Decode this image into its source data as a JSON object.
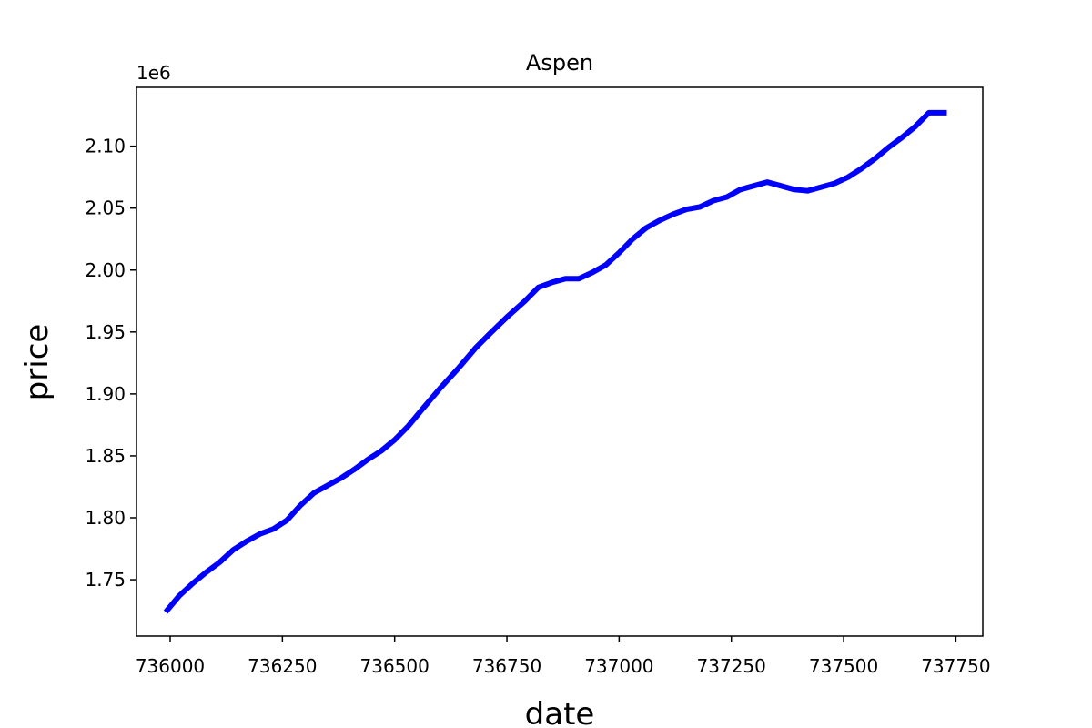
{
  "chart_data": {
    "type": "line",
    "title": "Aspen",
    "xlabel": "date",
    "ylabel": "price",
    "y_offset_label": "1e6",
    "xlim": [
      735925,
      737810
    ],
    "ylim": [
      1.7045,
      2.1475
    ],
    "xticks": [
      736000,
      736250,
      736500,
      736750,
      737000,
      737250,
      737500,
      737750
    ],
    "yticks": [
      1.75,
      1.8,
      1.85,
      1.9,
      1.95,
      2.0,
      2.05,
      2.1
    ],
    "x_tick_labels": [
      "736000",
      "736250",
      "736500",
      "736750",
      "737000",
      "737250",
      "737500",
      "737750"
    ],
    "y_tick_labels": [
      "1.75",
      "1.80",
      "1.85",
      "1.90",
      "1.95",
      "2.00",
      "2.05",
      "2.10"
    ],
    "grid": false,
    "series": [
      {
        "color": "#0000ff",
        "x": [
          735990,
          736020,
          736050,
          736080,
          736110,
          736140,
          736170,
          736200,
          736230,
          736260,
          736290,
          736320,
          736350,
          736380,
          736410,
          736440,
          736470,
          736500,
          736530,
          736560,
          736600,
          736640,
          736680,
          736710,
          736750,
          736790,
          736820,
          736850,
          736880,
          736910,
          736940,
          736970,
          737000,
          737030,
          737060,
          737090,
          737120,
          737150,
          737180,
          737210,
          737240,
          737270,
          737300,
          737330,
          737360,
          737390,
          737420,
          737450,
          737480,
          737510,
          737540,
          737570,
          737600,
          737630,
          737660,
          737690,
          737730
        ],
        "y": [
          1.724,
          1.737,
          1.747,
          1.756,
          1.764,
          1.774,
          1.781,
          1.787,
          1.791,
          1.798,
          1.81,
          1.82,
          1.826,
          1.832,
          1.839,
          1.847,
          1.854,
          1.863,
          1.874,
          1.887,
          1.904,
          1.92,
          1.937,
          1.948,
          1.962,
          1.975,
          1.986,
          1.99,
          1.993,
          1.993,
          1.998,
          2.004,
          2.014,
          2.025,
          2.034,
          2.04,
          2.045,
          2.049,
          2.051,
          2.056,
          2.059,
          2.065,
          2.068,
          2.071,
          2.068,
          2.065,
          2.064,
          2.067,
          2.07,
          2.075,
          2.082,
          2.09,
          2.099,
          2.107,
          2.116,
          2.127,
          2.127
        ]
      }
    ]
  }
}
